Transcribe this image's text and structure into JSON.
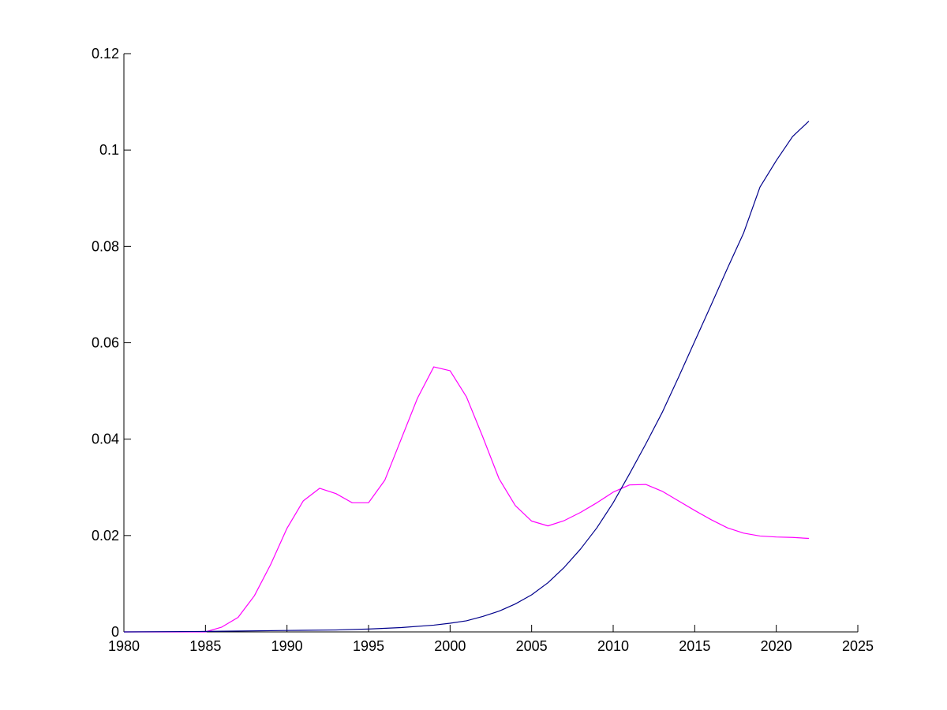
{
  "chart_data": {
    "type": "line",
    "title": "",
    "xlabel": "",
    "ylabel": "",
    "xlim": [
      1980,
      2025
    ],
    "ylim": [
      0,
      0.12
    ],
    "grid": false,
    "xticks": [
      1980,
      1985,
      1990,
      1995,
      2000,
      2005,
      2010,
      2015,
      2020,
      2025
    ],
    "xtick_labels": [
      "1980",
      "1985",
      "1990",
      "1995",
      "2000",
      "2005",
      "2010",
      "2015",
      "2020",
      "2025"
    ],
    "yticks": [
      0,
      0.02,
      0.04,
      0.06,
      0.08,
      0.1,
      0.12
    ],
    "ytick_labels": [
      "0",
      "0.02",
      "0.04",
      "0.06",
      "0.08",
      "0.1",
      "0.12"
    ],
    "series": [
      {
        "color": "#ff00ff",
        "x": [
          1980,
          1981,
          1982,
          1983,
          1984,
          1985,
          1986,
          1987,
          1988,
          1989,
          1990,
          1991,
          1992,
          1993,
          1994,
          1995,
          1996,
          1997,
          1998,
          1999,
          2000,
          2001,
          2002,
          2003,
          2004,
          2005,
          2006,
          2007,
          2008,
          2009,
          2010,
          2011,
          2012,
          2013,
          2014,
          2015,
          2016,
          2017,
          2018,
          2019,
          2020,
          2021,
          2022
        ],
        "values": [
          0,
          0,
          0,
          0,
          0,
          0,
          0.001,
          0.003,
          0.0075,
          0.014,
          0.0215,
          0.0272,
          0.0298,
          0.0287,
          0.0268,
          0.0268,
          0.0315,
          0.04,
          0.0485,
          0.055,
          0.0542,
          0.0488,
          0.0405,
          0.0318,
          0.0262,
          0.023,
          0.022,
          0.0231,
          0.0248,
          0.0268,
          0.029,
          0.0305,
          0.0306,
          0.0292,
          0.0272,
          0.0252,
          0.0233,
          0.0216,
          0.0205,
          0.0199,
          0.0197,
          0.0196,
          0.0194
        ]
      },
      {
        "color": "#00008b",
        "x": [
          1980,
          1985,
          1990,
          1993,
          1995,
          1997,
          1999,
          2000,
          2001,
          2002,
          2003,
          2004,
          2005,
          2006,
          2007,
          2008,
          2009,
          2010,
          2011,
          2012,
          2013,
          2014,
          2015,
          2016,
          2017,
          2018,
          2019,
          2020,
          2021,
          2022
        ],
        "values": [
          0,
          0.0001,
          0.0003,
          0.0004,
          0.0006,
          0.0009,
          0.0014,
          0.0018,
          0.0023,
          0.0032,
          0.0043,
          0.0058,
          0.0077,
          0.0102,
          0.0134,
          0.0172,
          0.0216,
          0.0268,
          0.0328,
          0.039,
          0.0455,
          0.0528,
          0.0603,
          0.0678,
          0.0754,
          0.0828,
          0.0923,
          0.0978,
          0.1028,
          0.106
        ]
      }
    ]
  }
}
